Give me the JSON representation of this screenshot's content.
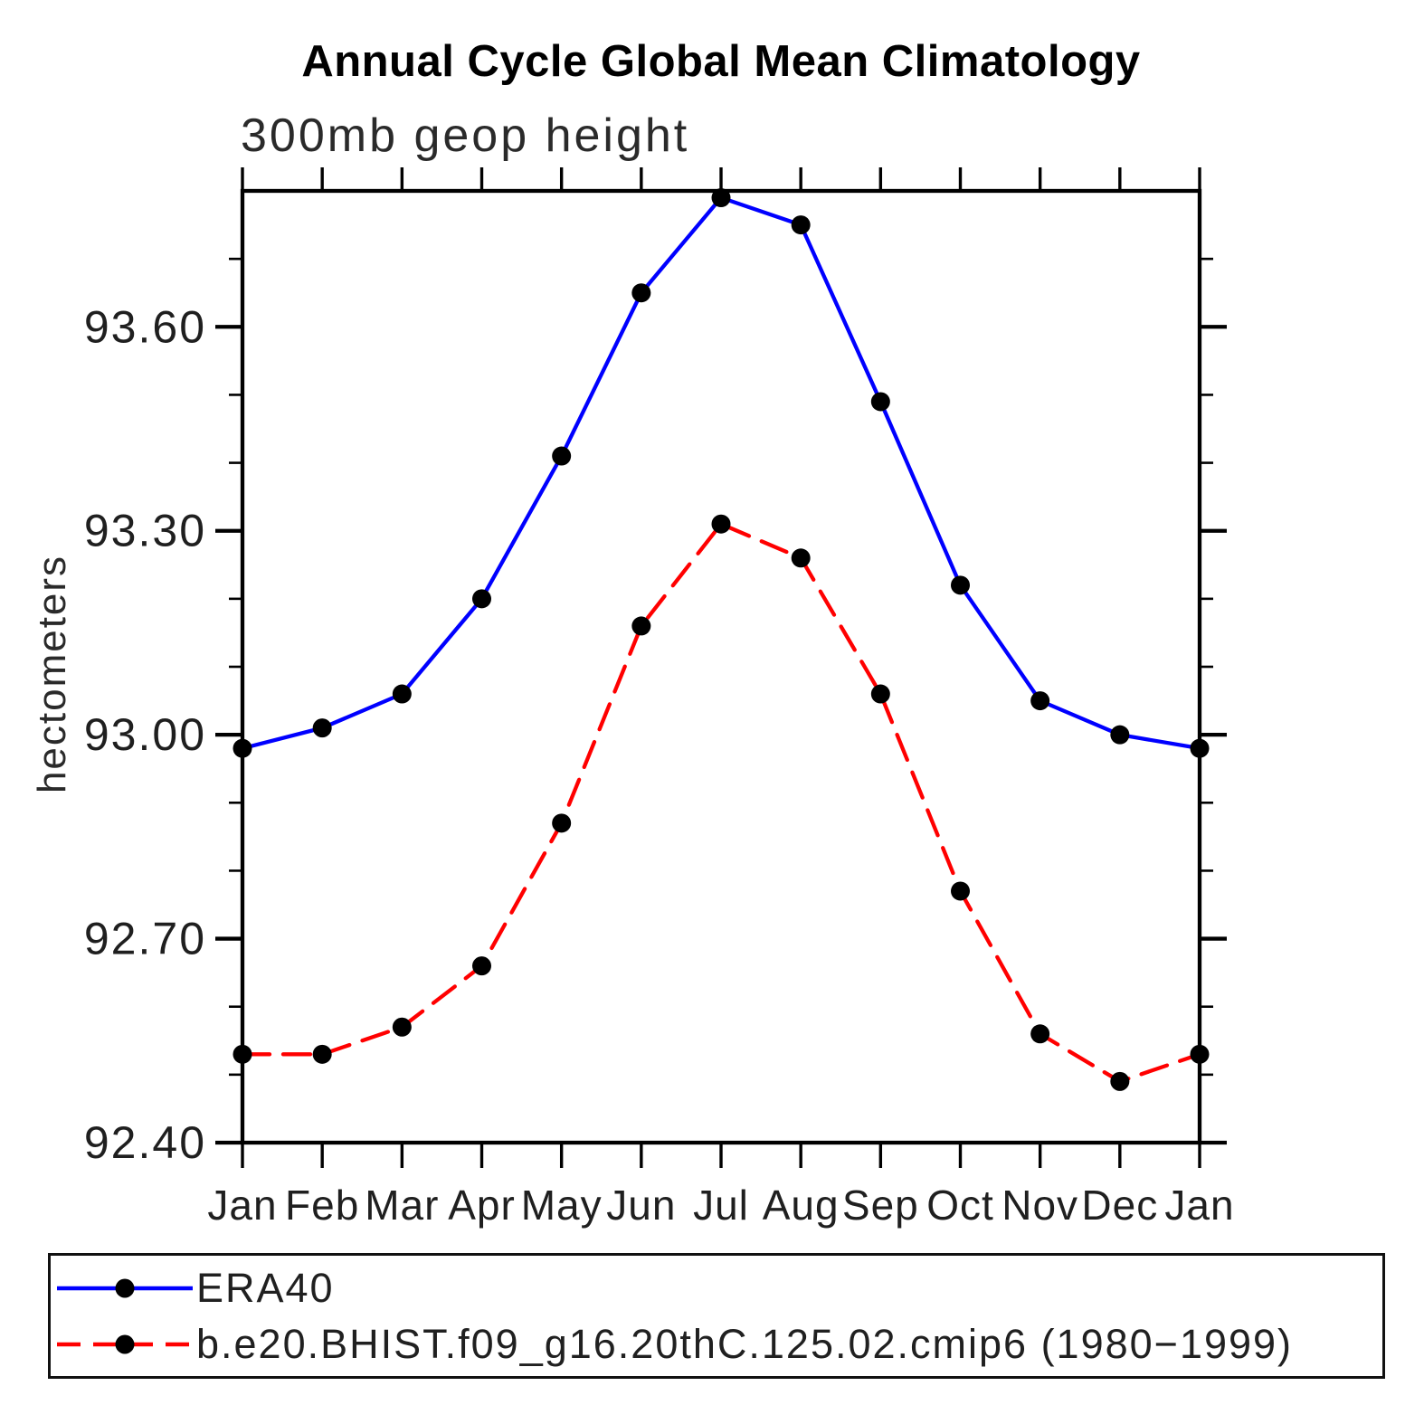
{
  "chart_data": {
    "type": "line",
    "title": "Annual Cycle Global Mean Climatology",
    "subtitle": "300mb geop height",
    "ylabel": "hectometers",
    "xlabel": "",
    "x_categories": [
      "Jan",
      "Feb",
      "Mar",
      "Apr",
      "May",
      "Jun",
      "Jul",
      "Aug",
      "Sep",
      "Oct",
      "Nov",
      "Dec",
      "Jan"
    ],
    "ylim": [
      92.4,
      93.8
    ],
    "y_major_ticks": [
      92.4,
      92.7,
      93.0,
      93.3,
      93.6
    ],
    "y_minor_step": 0.1,
    "grid": false,
    "legend_position": "bottom",
    "marker_color": "#000000",
    "axis_color": "#000000",
    "series": [
      {
        "name": "ERA40",
        "color": "#0000ff",
        "line_style": "solid",
        "marker": "filled-circle",
        "values": [
          92.98,
          93.01,
          93.06,
          93.2,
          93.41,
          93.65,
          93.79,
          93.75,
          93.49,
          93.22,
          93.05,
          93.0,
          92.98
        ]
      },
      {
        "name": "b.e20.BHIST.f09_g16.20thC.125.02.cmip6 (1980−1999)",
        "color": "#ff0000",
        "line_style": "dashed",
        "marker": "filled-circle",
        "values": [
          92.53,
          92.53,
          92.57,
          92.66,
          92.87,
          93.16,
          93.31,
          93.26,
          93.06,
          92.77,
          92.56,
          92.49,
          92.53
        ]
      }
    ]
  }
}
